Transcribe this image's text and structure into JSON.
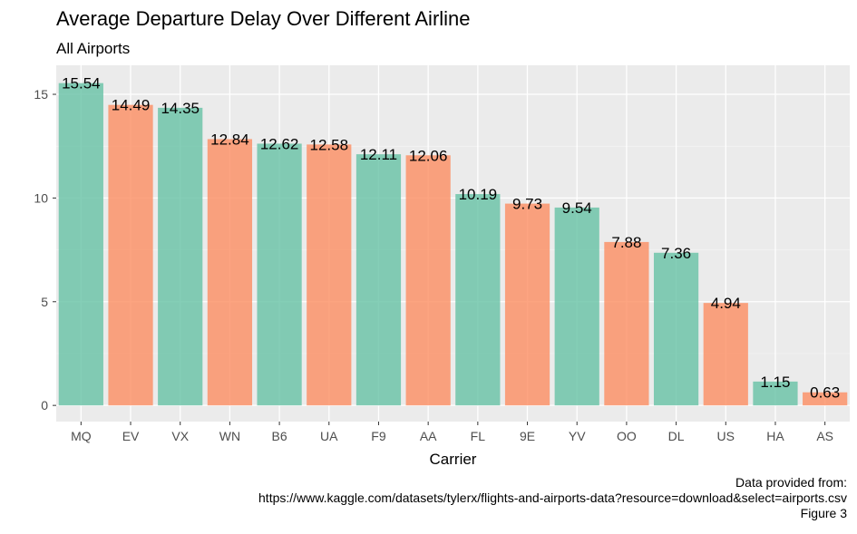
{
  "chart_data": {
    "type": "bar",
    "title": "Average Departure Delay Over Different Airline",
    "subtitle": "All Airports",
    "xlabel": "Carrier",
    "ylabel": "",
    "categories": [
      "MQ",
      "EV",
      "VX",
      "WN",
      "B6",
      "UA",
      "F9",
      "AA",
      "FL",
      "9E",
      "YV",
      "OO",
      "DL",
      "US",
      "HA",
      "AS"
    ],
    "values": [
      15.54,
      14.49,
      14.35,
      12.84,
      12.62,
      12.58,
      12.11,
      12.06,
      10.19,
      9.73,
      9.54,
      7.88,
      7.36,
      4.94,
      1.15,
      0.63
    ],
    "value_labels": [
      "15.54",
      "14.49",
      "14.35",
      "12.84",
      "12.62",
      "12.58",
      "12.11",
      "12.06",
      "10.19",
      "9.73",
      "9.54",
      "7.88",
      "7.36",
      "4.94",
      "1.15",
      "0.63"
    ],
    "y_ticks": [
      0,
      5,
      10,
      15
    ],
    "y_tick_labels": [
      "0",
      "5",
      "10",
      "15"
    ],
    "ylim": [
      -0.78,
      16.4
    ],
    "grid": true,
    "legend": "none",
    "colors": {
      "green": "#66c2a5",
      "orange": "#fc8d62",
      "panel": "#ebebeb",
      "grid_major": "#ffffff",
      "grid_minor": "#f5f5f5",
      "tick_text": "#4d4d4d"
    },
    "caption": [
      "Data provided from:",
      "https://www.kaggle.com/datasets/tylerx/flights-and-airports-data?resource=download&select=airports.csv",
      "Figure 3"
    ]
  }
}
